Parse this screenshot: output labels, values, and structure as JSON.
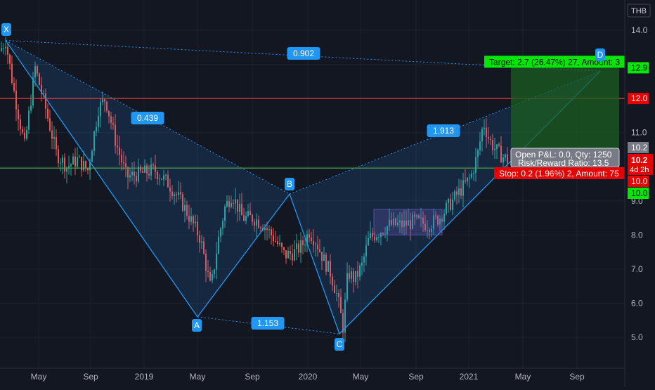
{
  "currency": "THB",
  "colors": {
    "background": "#131722",
    "grid": "#1e222d",
    "up": "#26a69a",
    "down": "#ef5350",
    "pattern_line": "#2196f3",
    "pattern_fill": "#1e3a5f",
    "label_bg": "#2196f3",
    "target_fill": "#1b5e20",
    "stop_fill": "#7f1d1d",
    "target_label": "#00e600",
    "stop_label": "#e60000",
    "resistance_line": "#e53935",
    "support_line": "#4caf50",
    "range_box": "#7e57c2"
  },
  "chart_data": {
    "type": "candlestick",
    "title": "",
    "yaxis": {
      "ticks": [
        "5.0",
        "6.0",
        "7.0",
        "8.0",
        "9.0",
        "10.0",
        "11.0",
        "12.0",
        "14.0"
      ],
      "range": [
        4.8,
        14.3
      ]
    },
    "xaxis": {
      "ticks": [
        "May",
        "Sep",
        "2019",
        "May",
        "Sep",
        "2020",
        "May",
        "Sep",
        "2021",
        "May",
        "Sep"
      ]
    },
    "grid": true,
    "harmonic_pattern": {
      "points": [
        {
          "label": "X",
          "value": 13.7
        },
        {
          "label": "A",
          "value": 5.6
        },
        {
          "label": "B",
          "value": 9.2
        },
        {
          "label": "C",
          "value": 5.1
        },
        {
          "label": "D",
          "value": 12.8
        }
      ],
      "ratios": {
        "xb": "0.439",
        "xd": "0.902",
        "ac": "1.153",
        "bd": "1.913"
      }
    },
    "horizontal_lines": [
      {
        "value": 12.0,
        "label": "12.0"
      },
      {
        "value": 9.96,
        "label": ""
      }
    ],
    "range_box": {
      "low": 8.0,
      "high": 8.75
    },
    "position": {
      "target_price": "12.9",
      "stop_price": "10.0",
      "entry_price": "10.2",
      "target_text": "Target: 2.7 (26.47%) 27, Amount: 3",
      "stop_text": "Stop: 0.2 (1.96%) 2, Amount: 75",
      "pnl_text": "Open P&L: 0.0, Qty: 1250",
      "rr_text": "Risk/Reward Ratio: 13.5"
    },
    "price_labels": {
      "last_grey": "10.2",
      "last_red": "10.2",
      "countdown": "4d 2h",
      "stop_red": "10.0",
      "target_green": "12.9",
      "stop_green": "10.0"
    },
    "candles_description": "daily candles"
  }
}
